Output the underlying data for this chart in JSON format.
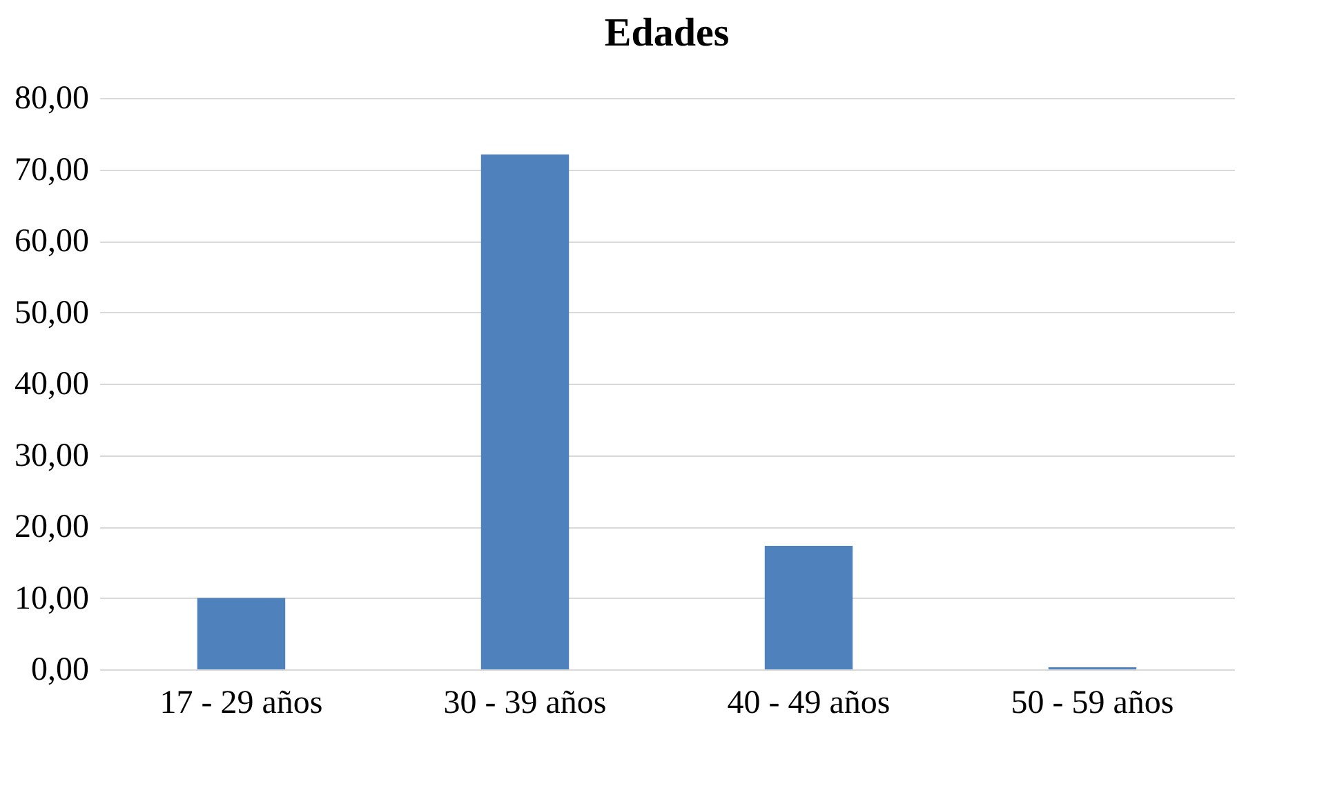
{
  "chart_data": {
    "type": "bar",
    "title": "Edades",
    "categories": [
      "17 - 29 años",
      "30 - 39 años",
      "40 - 49 años",
      "50 - 59 años"
    ],
    "values": [
      10.0,
      72.1,
      17.3,
      0.3
    ],
    "color": "#4f81bd",
    "ylim": [
      0,
      80
    ],
    "yticks": [
      {
        "value": 0,
        "label": "0,00"
      },
      {
        "value": 10,
        "label": "10,00"
      },
      {
        "value": 20,
        "label": "20,00"
      },
      {
        "value": 30,
        "label": "30,00"
      },
      {
        "value": 40,
        "label": "40,00"
      },
      {
        "value": 50,
        "label": "50,00"
      },
      {
        "value": 60,
        "label": "60,00"
      },
      {
        "value": 70,
        "label": "70,00"
      },
      {
        "value": 80,
        "label": "80,00"
      }
    ],
    "grid": "y"
  }
}
